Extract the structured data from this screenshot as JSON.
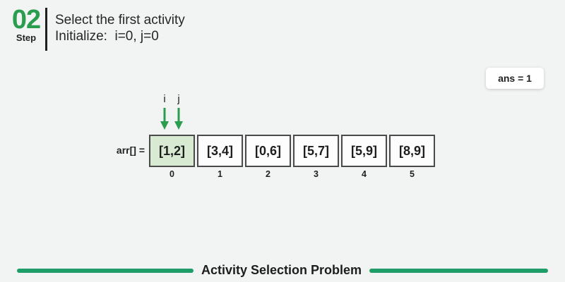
{
  "step": {
    "number": "02",
    "label": "Step"
  },
  "description": {
    "line1": "Select the first activity",
    "line2": "Initialize:  i=0, j=0"
  },
  "answer_badge": {
    "text": "ans = 1"
  },
  "array": {
    "label": "arr[] =",
    "cells": [
      {
        "value": "[1,2]",
        "index": "0",
        "highlighted": true
      },
      {
        "value": "[3,4]",
        "index": "1",
        "highlighted": false
      },
      {
        "value": "[0,6]",
        "index": "2",
        "highlighted": false
      },
      {
        "value": "[5,7]",
        "index": "3",
        "highlighted": false
      },
      {
        "value": "[5,9]",
        "index": "4",
        "highlighted": false
      },
      {
        "value": "[8,9]",
        "index": "5",
        "highlighted": false
      }
    ],
    "pointers": [
      {
        "label": "i",
        "points_to_index": 0
      },
      {
        "label": "j",
        "points_to_index": 0
      }
    ]
  },
  "footer": {
    "title": "Activity Selection Problem"
  },
  "colors": {
    "background": "#f2f4f3",
    "accent_green": "#2a9d4f",
    "footer_line_green": "#1f9d68",
    "highlight_cell": "#d9ead3",
    "cell_border": "#4a4a4a",
    "text_dark": "#1f1f1f"
  }
}
